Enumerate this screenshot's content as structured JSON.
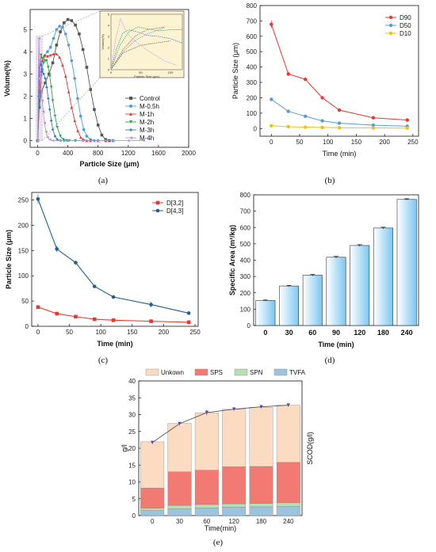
{
  "chart_data": [
    {
      "id": "a",
      "type": "line",
      "caption": "(a)",
      "xlabel": "Particle Size (μm)",
      "ylabel": "Volume(%)",
      "xlim": [
        -100,
        2000
      ],
      "ylim": [
        -0.3,
        5.9
      ],
      "xticks": [
        0,
        400,
        800,
        1200,
        1600,
        2000
      ],
      "yticks": [
        0,
        1,
        2,
        3,
        4,
        5
      ],
      "legend_position": "right",
      "series": [
        {
          "name": "Control",
          "color": "#555555",
          "marker": "square",
          "x": [
            0,
            20,
            50,
            100,
            150,
            200,
            250,
            300,
            350,
            400,
            450,
            500,
            550,
            600,
            650,
            700,
            750,
            800,
            850,
            900,
            950,
            1000
          ],
          "y": [
            0,
            1.5,
            2.2,
            2.6,
            3.0,
            3.5,
            4.3,
            4.9,
            5.3,
            5.45,
            5.4,
            5.2,
            4.8,
            4.1,
            3.3,
            2.3,
            1.4,
            0.7,
            0.25,
            0.05,
            0,
            0
          ]
        },
        {
          "name": "M-0.5h",
          "color": "#4a9fd8",
          "marker": "circle",
          "x": [
            0,
            20,
            40,
            60,
            90,
            130,
            170,
            210,
            250,
            290,
            330,
            370,
            410,
            450,
            490,
            530,
            570,
            610,
            650,
            700,
            750,
            800,
            900,
            1000
          ],
          "y": [
            0,
            1.6,
            2.6,
            3.2,
            3.8,
            4.0,
            4.2,
            4.6,
            5.0,
            5.15,
            5.1,
            4.8,
            4.3,
            3.6,
            2.8,
            1.9,
            1.1,
            0.5,
            0.2,
            0.05,
            0,
            0,
            0,
            0
          ]
        },
        {
          "name": "M-1h",
          "color": "#e8382f",
          "marker": "triangle",
          "x": [
            0,
            20,
            40,
            60,
            90,
            130,
            170,
            210,
            250,
            290,
            330,
            370,
            410,
            450,
            490,
            530,
            570,
            610,
            650,
            700,
            800,
            900
          ],
          "y": [
            0,
            1.8,
            3.0,
            3.6,
            3.85,
            3.8,
            3.85,
            3.9,
            3.9,
            3.75,
            3.4,
            2.9,
            2.2,
            1.5,
            0.9,
            0.45,
            0.15,
            0.05,
            0,
            0,
            0,
            0
          ]
        },
        {
          "name": "M-2h",
          "color": "#2aa84a",
          "marker": "triangle-down",
          "x": [
            0,
            15,
            30,
            45,
            60,
            80,
            100,
            120,
            140,
            160,
            180,
            200,
            230,
            260,
            300,
            340,
            380,
            420,
            500,
            600
          ],
          "y": [
            0,
            2.2,
            3.4,
            3.85,
            3.7,
            3.5,
            3.6,
            3.6,
            3.3,
            2.9,
            2.4,
            1.8,
            1.1,
            0.6,
            0.2,
            0.05,
            0,
            0,
            0,
            0
          ]
        },
        {
          "name": "M-3h",
          "color": "#2b7fc1",
          "marker": "diamond",
          "x": [
            0,
            10,
            20,
            30,
            45,
            60,
            80,
            100,
            120,
            140,
            160,
            180,
            200,
            230,
            260,
            300,
            350,
            400,
            500,
            600
          ],
          "y": [
            0,
            2.0,
            3.3,
            3.6,
            3.4,
            3.1,
            3.0,
            2.8,
            2.4,
            1.9,
            1.4,
            0.9,
            0.5,
            0.2,
            0.05,
            0,
            0,
            0,
            0,
            0
          ]
        },
        {
          "name": "M-4h",
          "color": "#c48ee0",
          "marker": "triangle-left",
          "x": [
            0,
            8,
            16,
            24,
            32,
            40,
            50,
            60,
            75,
            90,
            110,
            130,
            160,
            200,
            300,
            400,
            600,
            800,
            1000,
            1200,
            1400
          ],
          "y": [
            0,
            2.8,
            4.6,
            3.6,
            3.0,
            2.6,
            2.2,
            1.8,
            1.3,
            0.8,
            0.4,
            0.15,
            0.05,
            0,
            0,
            0,
            0,
            0,
            0,
            0,
            0
          ]
        }
      ],
      "inset": {
        "xlabel": "Particle Size (μm)",
        "ylabel": "Volume(%)",
        "xticks": [
          0,
          50,
          100
        ],
        "yticks": [
          0,
          1,
          2,
          3,
          4,
          5
        ]
      }
    },
    {
      "id": "b",
      "type": "line",
      "caption": "(b)",
      "xlabel": "Time (min)",
      "ylabel": "Particle Size (μm)",
      "xlim": [
        -20,
        260
      ],
      "ylim": [
        -50,
        800
      ],
      "xticks": [
        0,
        50,
        100,
        150,
        200,
        250
      ],
      "yticks": [
        0,
        100,
        200,
        300,
        400,
        500,
        600,
        700,
        800
      ],
      "legend_position": "top-right",
      "x": [
        0,
        30,
        60,
        90,
        120,
        180,
        240
      ],
      "series": [
        {
          "name": "D90",
          "color": "#e8382f",
          "values": [
            678,
            355,
            320,
            200,
            120,
            70,
            55
          ],
          "errors": [
            25,
            10,
            8,
            6,
            5,
            4,
            3
          ]
        },
        {
          "name": "D50",
          "color": "#5b9bd5",
          "values": [
            190,
            112,
            80,
            50,
            35,
            22,
            15
          ],
          "errors": [
            6,
            4,
            3,
            2,
            2,
            1,
            1
          ]
        },
        {
          "name": "D10",
          "color": "#f2c200",
          "values": [
            18,
            12,
            9,
            7,
            5,
            4,
            3
          ],
          "errors": [
            1,
            1,
            1,
            1,
            1,
            1,
            1
          ]
        }
      ]
    },
    {
      "id": "c",
      "type": "line",
      "caption": "(c)",
      "xlabel": "Time (min)",
      "ylabel": "Particle Size (μm)",
      "xlim": [
        -10,
        255
      ],
      "ylim": [
        0,
        265
      ],
      "xticks": [
        0,
        50,
        100,
        150,
        200,
        250
      ],
      "yticks": [
        0,
        50,
        100,
        150,
        200,
        250
      ],
      "legend_position": "top-right",
      "x": [
        0,
        30,
        60,
        90,
        120,
        180,
        240
      ],
      "series": [
        {
          "name": "D[3,2]",
          "color": "#e8382f",
          "values": [
            38,
            25,
            19,
            14,
            12,
            10,
            8
          ],
          "errors": [
            2,
            1,
            1,
            1,
            1,
            1,
            1
          ]
        },
        {
          "name": "D[4,3]",
          "color": "#1f5f95",
          "values": [
            252,
            153,
            126,
            79,
            58,
            43,
            26
          ],
          "errors": [
            9,
            6,
            4,
            3,
            2,
            5,
            2
          ]
        }
      ]
    },
    {
      "id": "d",
      "type": "bar",
      "caption": "(d)",
      "xlabel": "Time (min)",
      "ylabel": "Specific Area (m²/kg)",
      "ylim": [
        0,
        800
      ],
      "yticks": [
        0,
        100,
        200,
        300,
        400,
        500,
        600,
        700,
        800
      ],
      "categories": [
        "0",
        "30",
        "60",
        "90",
        "120",
        "180",
        "240"
      ],
      "values": [
        153,
        242,
        308,
        418,
        490,
        597,
        772
      ],
      "errors": [
        3,
        4,
        4,
        5,
        5,
        5,
        4
      ],
      "bar_color": "#7cc6f2"
    },
    {
      "id": "e",
      "type": "bar",
      "stacked": true,
      "caption": "(e)",
      "xlabel": "Time(min)",
      "ylabel": "g/l",
      "ylabel_right": "SCOD(g/l)",
      "ylim": [
        0,
        40
      ],
      "yticks": [
        0,
        5,
        10,
        15,
        20,
        25,
        30,
        35,
        40
      ],
      "categories": [
        "0",
        "30",
        "60",
        "120",
        "180",
        "240"
      ],
      "legend_position": "top",
      "series": [
        {
          "name": "TVFA",
          "color": "#9ec3df",
          "values": [
            1.5,
            2.0,
            2.3,
            2.5,
            2.6,
            2.7
          ]
        },
        {
          "name": "SPN",
          "color": "#b6dfb4",
          "values": [
            0.7,
            1.0,
            1.0,
            1.0,
            1.0,
            1.1
          ]
        },
        {
          "name": "SPS",
          "color": "#f37a72",
          "values": [
            6.0,
            10.0,
            10.2,
            11.0,
            11.0,
            12.0
          ]
        },
        {
          "name": "Unkown",
          "color": "#fbdcc2",
          "values": [
            13.7,
            14.4,
            17.0,
            17.1,
            17.6,
            17.0
          ]
        }
      ],
      "scod_line": {
        "values": [
          21.7,
          27.3,
          30.6,
          31.6,
          32.3,
          32.8
        ],
        "errors": [
          0.3,
          0.4,
          0.8,
          0.4,
          0.4,
          0.4
        ],
        "color": "#555555",
        "marker_color": "#6a3fa0"
      }
    }
  ]
}
